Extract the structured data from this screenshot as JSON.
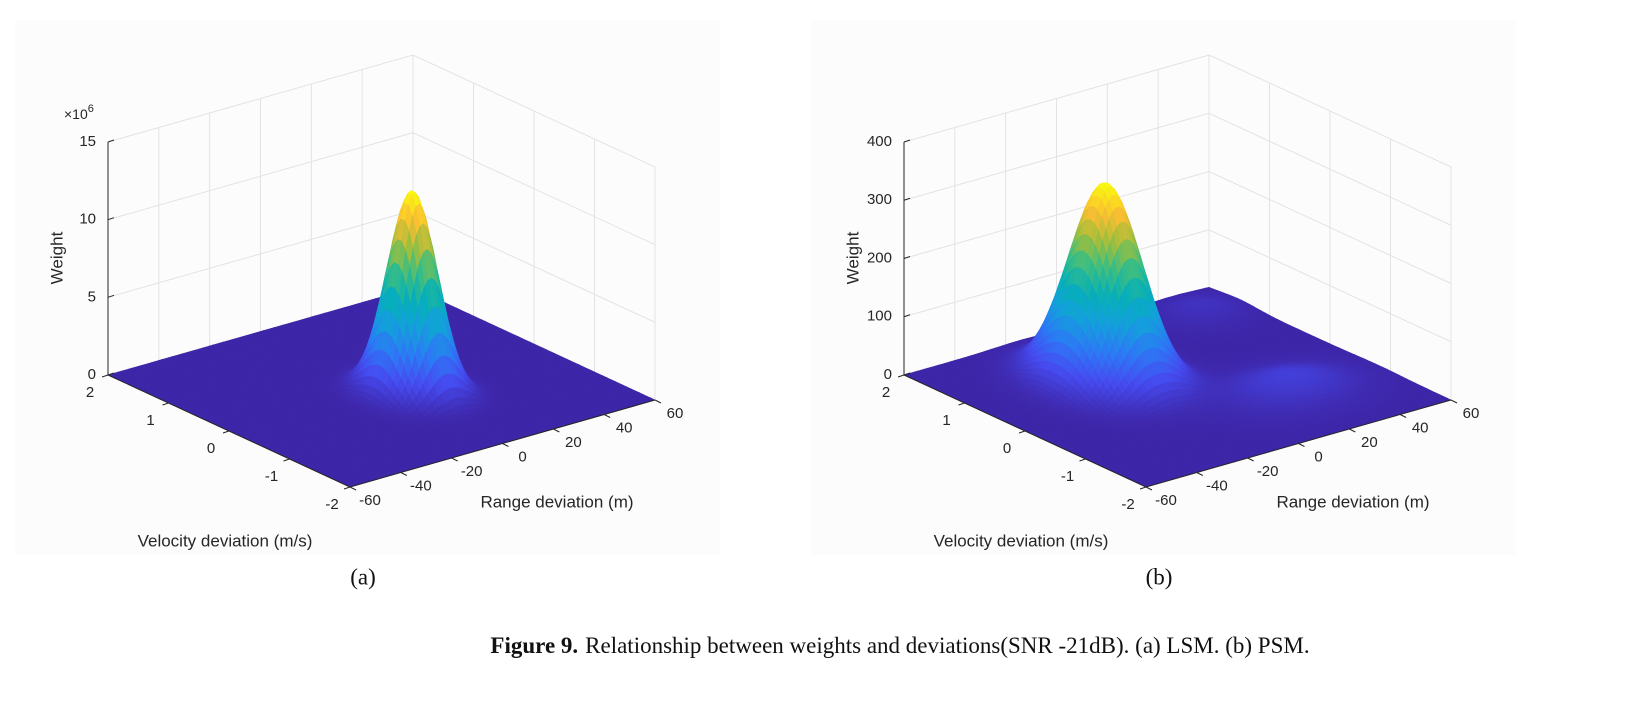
{
  "chart_data": [
    {
      "type": "surface",
      "subcaption": "(a)",
      "xlabel": "Range deviation (m)",
      "ylabel": "Velocity deviation (m/s)",
      "zlabel": "Weight",
      "xlim": [
        -60,
        60
      ],
      "xticks": [
        -60,
        -40,
        -20,
        0,
        20,
        40,
        60
      ],
      "ylim": [
        -2,
        2
      ],
      "yticks": [
        -2,
        -1,
        0,
        1,
        2
      ],
      "zlim": [
        0,
        15
      ],
      "zticks": [
        0,
        5,
        10,
        15
      ],
      "z_multiplier": {
        "base": "×10",
        "exponent": "6"
      },
      "grid": true,
      "peaks": [
        {
          "x": 5,
          "y": -0.3,
          "z": 13,
          "sx": 7,
          "sy": 0.3
        }
      ]
    },
    {
      "type": "surface",
      "subcaption": "(b)",
      "xlabel": "Range deviation (m)",
      "ylabel": "Velocity deviation (m/s)",
      "zlabel": "Weight",
      "xlim": [
        -60,
        60
      ],
      "xticks": [
        -60,
        -40,
        -20,
        0,
        20,
        40,
        60
      ],
      "ylim": [
        -2,
        2
      ],
      "yticks": [
        -2,
        -1,
        0,
        1,
        2
      ],
      "zlim": [
        0,
        400
      ],
      "zticks": [
        0,
        100,
        200,
        300,
        400
      ],
      "grid": true,
      "peaks": [
        {
          "x": -14,
          "y": 0.6,
          "z": 340,
          "sx": 10,
          "sy": 0.45
        },
        {
          "x": 25,
          "y": -0.8,
          "z": 30,
          "sx": 15,
          "sy": 0.4
        },
        {
          "x": 45,
          "y": 1.5,
          "z": 15,
          "sx": 10,
          "sy": 0.3
        }
      ]
    }
  ],
  "caption": {
    "label": "Figure 9.",
    "text": "Relationship between weights and deviations(SNR -21dB). (a) LSM. (b) PSM."
  }
}
